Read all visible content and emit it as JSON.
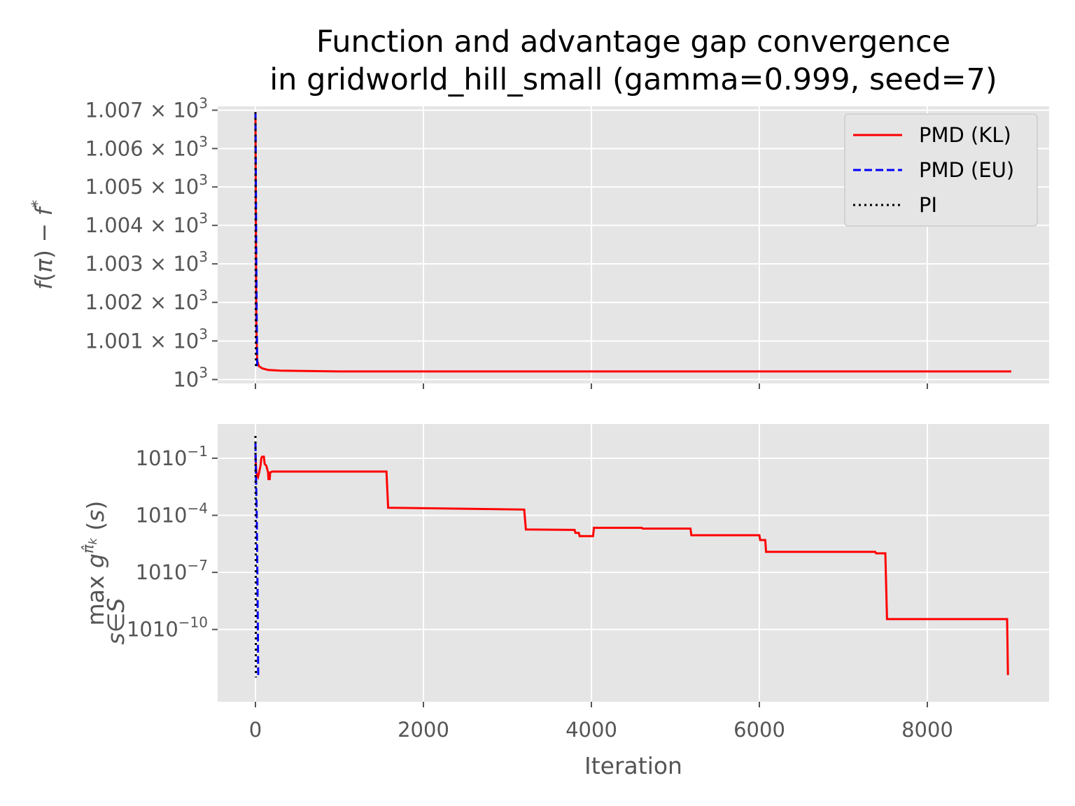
{
  "title_line1": "Function and advantage gap convergence",
  "title_line2": "in gridworld_hill_small (gamma=0.999, seed=7)",
  "colors": {
    "panel_bg": "#e5e5e5",
    "grid": "#ffffff",
    "tick_text": "#555555",
    "pmd_kl": "#ff0000",
    "pmd_eu": "#0000ff",
    "pi": "#000000"
  },
  "chart_data": [
    {
      "type": "line",
      "ylabel": "f(π) − f*",
      "yscale": "log",
      "xlim": [
        -450,
        9450
      ],
      "ylim": [
        999.9,
        1007.1
      ],
      "x_ticks": [
        0,
        2000,
        4000,
        6000,
        8000
      ],
      "y_ticks": [
        {
          "value": 1000,
          "mantissa": "",
          "exp": "3"
        },
        {
          "value": 1001,
          "mantissa": "1.001 × ",
          "exp": "3"
        },
        {
          "value": 1002,
          "mantissa": "1.002 × ",
          "exp": "3"
        },
        {
          "value": 1003,
          "mantissa": "1.003 × ",
          "exp": "3"
        },
        {
          "value": 1004,
          "mantissa": "1.004 × ",
          "exp": "3"
        },
        {
          "value": 1005,
          "mantissa": "1.005 × ",
          "exp": "3"
        },
        {
          "value": 1006,
          "mantissa": "1.006 × ",
          "exp": "3"
        },
        {
          "value": 1007,
          "mantissa": "1.007 × ",
          "exp": "3"
        }
      ],
      "grid": true,
      "legend": "upper-right",
      "series": [
        {
          "name": "PMD (KL)",
          "style": "solid",
          "color": "#ff0000",
          "x": [
            0,
            5,
            10,
            20,
            40,
            80,
            150,
            300,
            600,
            1000,
            2000,
            5000,
            9000
          ],
          "y": [
            1006.95,
            1004.0,
            1001.5,
            1000.5,
            1000.35,
            1000.29,
            1000.25,
            1000.23,
            1000.22,
            1000.21,
            1000.21,
            1000.21,
            1000.21
          ]
        },
        {
          "name": "PMD (EU)",
          "style": "dashed",
          "color": "#0000ff",
          "x": [
            0,
            5,
            10,
            15,
            20,
            22
          ],
          "y": [
            1006.95,
            1005.0,
            1003.0,
            1001.5,
            1000.5,
            1000.3
          ]
        },
        {
          "name": "PI",
          "style": "dotted",
          "color": "#000000",
          "x": [
            0,
            2,
            4,
            6
          ],
          "y": [
            1006.95,
            1004.0,
            1001.0,
            1000.3
          ]
        }
      ]
    },
    {
      "type": "line",
      "xlabel": "Iteration",
      "ylabel": "max_{s∈S} g^{π̂_k}(s)",
      "yscale": "log",
      "xlim": [
        -450,
        9450
      ],
      "ylim_log10": [
        -13.8,
        0.8
      ],
      "x_ticks": [
        0,
        2000,
        4000,
        6000,
        8000
      ],
      "y_ticks": [
        {
          "value": 0.1,
          "mantissa": "10",
          "exp": "−1"
        },
        {
          "value": 0.0001,
          "mantissa": "10",
          "exp": "−4"
        },
        {
          "value": 1e-07,
          "mantissa": "10",
          "exp": "−7"
        },
        {
          "value": 1e-10,
          "mantissa": "10",
          "exp": "−10"
        }
      ],
      "grid": true,
      "series": [
        {
          "name": "PMD (KL)",
          "style": "solid",
          "color": "#ff0000",
          "x": [
            0,
            5,
            10,
            20,
            30,
            40,
            60,
            70,
            80,
            100,
            110,
            130,
            150,
            155,
            170,
            175,
            200,
            1560,
            1580,
            3200,
            3220,
            3800,
            3810,
            3850,
            3860,
            4020,
            4030,
            4600,
            4610,
            5180,
            5190,
            6000,
            6010,
            6070,
            6080,
            7380,
            7390,
            7500,
            7520,
            8950,
            8960
          ],
          "y": [
            0.15,
            0.05,
            0.02,
            0.012,
            0.01,
            0.015,
            0.04,
            0.1,
            0.12,
            0.12,
            0.05,
            0.04,
            0.018,
            0.008,
            0.008,
            0.018,
            0.02,
            0.02,
            0.00025,
            0.0002,
            1.8e-05,
            1.7e-05,
            1.2e-05,
            1.2e-05,
            8e-06,
            8e-06,
            2.2e-05,
            2.2e-05,
            2e-05,
            2e-05,
            9e-06,
            9e-06,
            5e-06,
            5e-06,
            1.2e-06,
            1.2e-06,
            1e-06,
            1e-06,
            3.5e-10,
            3.5e-10,
            4e-13
          ]
        },
        {
          "name": "PMD (EU)",
          "style": "dashed",
          "color": "#0000ff",
          "x": [
            0,
            5,
            10,
            15,
            20,
            25,
            30,
            33
          ],
          "y": [
            0.6,
            0.02,
            0.002,
            0.0001,
            1e-06,
            1e-08,
            1e-11,
            3e-13
          ]
        },
        {
          "name": "PI",
          "style": "dotted",
          "color": "#000000",
          "x": [
            0,
            1,
            2,
            3,
            4,
            5
          ],
          "y": [
            1.5,
            0.1,
            0.001,
            1e-06,
            1e-10,
            3e-13
          ]
        }
      ]
    }
  ]
}
